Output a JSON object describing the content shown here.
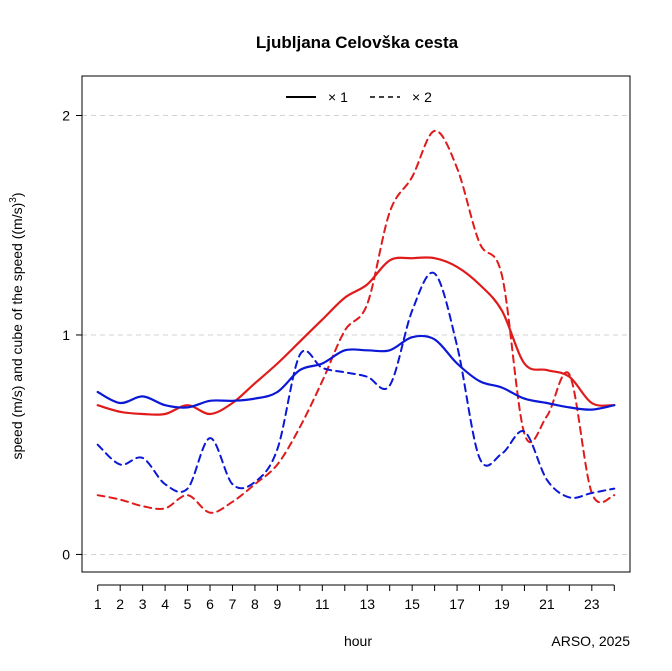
{
  "chart_data": {
    "type": "line",
    "title": "Ljubljana Celovška cesta",
    "xlabel": "hour",
    "ylabel": "speed (m/s) and cube of the speed ((m/s)^3)",
    "ylabel_parts": {
      "main": "speed (m/s) and cube of the speed ((m/s)",
      "exp": "3",
      "tail": ")"
    },
    "xlim": [
      0.3,
      24.7
    ],
    "ylim": [
      -0.08,
      2.18
    ],
    "x_ticks": [
      1,
      2,
      3,
      4,
      5,
      6,
      7,
      8,
      9,
      11,
      13,
      15,
      17,
      19,
      21,
      23
    ],
    "x_tick_labels": [
      "1",
      "2",
      "3",
      "4",
      "5",
      "6",
      "7",
      "8",
      "9",
      "11",
      "13",
      "15",
      "17",
      "19",
      "21",
      "23"
    ],
    "y_ticks": [
      0,
      1,
      2
    ],
    "y_tick_labels": [
      "0",
      "1",
      "2"
    ],
    "grid": "horizontal dashed at y ticks",
    "legend": {
      "placement": "top-center",
      "entries": [
        {
          "label": "× 1",
          "style": "solid"
        },
        {
          "label": "× 2",
          "style": "dashed"
        }
      ]
    },
    "credit": "ARSO, 2025",
    "series": [
      {
        "color": "#e01b1b",
        "style": "solid",
        "x": [
          1,
          2,
          3,
          4,
          5,
          6,
          7,
          8,
          9,
          10,
          11,
          12,
          13,
          14,
          15,
          16,
          17,
          18,
          19,
          20,
          21,
          22,
          23,
          24
        ],
        "y": [
          0.68,
          0.65,
          0.64,
          0.64,
          0.68,
          0.64,
          0.69,
          0.78,
          0.87,
          0.97,
          1.07,
          1.17,
          1.23,
          1.34,
          1.35,
          1.35,
          1.31,
          1.23,
          1.11,
          0.87,
          0.84,
          0.81,
          0.69,
          0.68
        ]
      },
      {
        "color": "#e01b1b",
        "style": "dashed",
        "x": [
          1,
          2,
          3,
          4,
          5,
          6,
          7,
          8,
          9,
          10,
          11,
          12,
          13,
          14,
          15,
          16,
          17,
          18,
          19,
          20,
          21,
          22,
          23,
          24
        ],
        "y": [
          0.27,
          0.25,
          0.22,
          0.21,
          0.27,
          0.19,
          0.24,
          0.32,
          0.41,
          0.58,
          0.79,
          1.02,
          1.14,
          1.56,
          1.72,
          1.93,
          1.76,
          1.42,
          1.27,
          0.55,
          0.63,
          0.82,
          0.28,
          0.27
        ]
      },
      {
        "color": "#0b18d6",
        "style": "solid",
        "x": [
          1,
          2,
          3,
          4,
          5,
          6,
          7,
          8,
          9,
          10,
          11,
          12,
          13,
          14,
          15,
          16,
          17,
          18,
          19,
          20,
          21,
          22,
          23,
          24
        ],
        "y": [
          0.74,
          0.69,
          0.72,
          0.68,
          0.67,
          0.7,
          0.7,
          0.71,
          0.74,
          0.84,
          0.87,
          0.93,
          0.93,
          0.93,
          0.99,
          0.98,
          0.87,
          0.79,
          0.76,
          0.71,
          0.69,
          0.67,
          0.66,
          0.68
        ]
      },
      {
        "color": "#0b18d6",
        "style": "dashed",
        "x": [
          1,
          2,
          3,
          4,
          5,
          6,
          7,
          8,
          9,
          10,
          11,
          12,
          13,
          14,
          15,
          16,
          17,
          18,
          19,
          20,
          21,
          22,
          23,
          24
        ],
        "y": [
          0.5,
          0.41,
          0.44,
          0.32,
          0.3,
          0.53,
          0.32,
          0.33,
          0.48,
          0.91,
          0.85,
          0.83,
          0.81,
          0.77,
          1.11,
          1.28,
          0.95,
          0.44,
          0.46,
          0.56,
          0.34,
          0.26,
          0.28,
          0.3
        ]
      }
    ]
  }
}
